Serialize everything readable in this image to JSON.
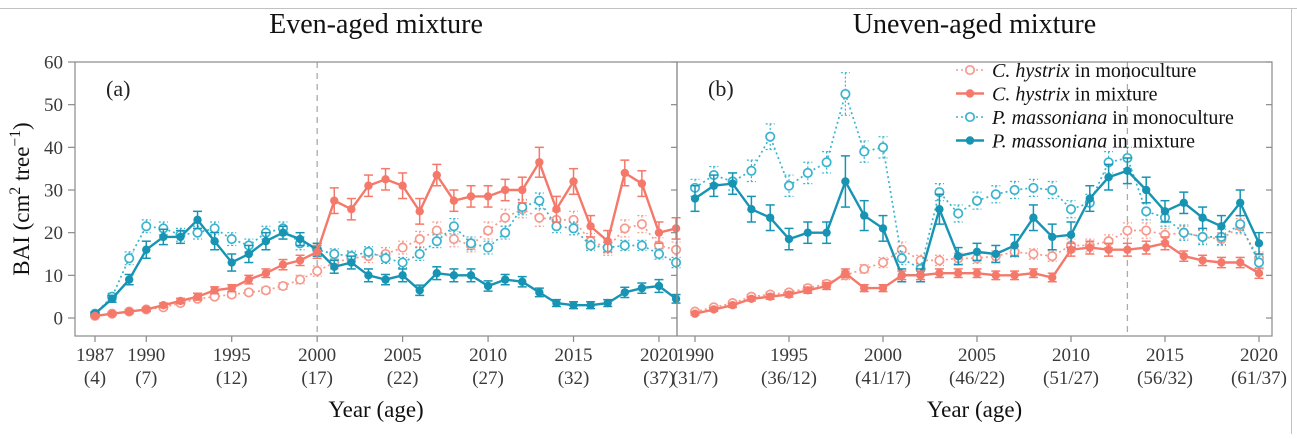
{
  "figure": {
    "panel_a": {
      "label": "(a)",
      "title": "Even-aged mixture",
      "xaxis_title": "Year (age)"
    },
    "panel_b": {
      "label": "(b)",
      "title": "Uneven-aged mixture",
      "xaxis_title": "Year (age)"
    },
    "y_axis": {
      "label_prefix": "BAI (cm",
      "label_sup1": "2",
      "label_mid": " tree",
      "label_sup2": "−1",
      "label_suffix": ")",
      "ticks": [
        0,
        10,
        20,
        30,
        40,
        50,
        60
      ]
    },
    "legend": [
      {
        "species": "C. hystrix",
        "rest": " in monoculture",
        "color_key": "salmon_open",
        "style": "open-dotted"
      },
      {
        "species": "C. hystrix",
        "rest": " in mixture",
        "color_key": "salmon_solid",
        "style": "filled-solid"
      },
      {
        "species": "P. massoniana",
        "rest": " in monoculture",
        "color_key": "teal_open",
        "style": "open-dotted"
      },
      {
        "species": "P. massoniana",
        "rest": " in mixture",
        "color_key": "teal_solid",
        "style": "filled-solid"
      }
    ],
    "colors": {
      "salmon_open": "#f79a8d",
      "salmon_solid": "#f5796a",
      "teal_open": "#3ab4ce",
      "teal_solid": "#1794b3",
      "dashed_line": "#ababab",
      "axis": "#8a8a8a",
      "tick_text": "#3a3a3a"
    }
  },
  "chart_data": [
    {
      "type": "line",
      "panel": "a",
      "title": "Even-aged mixture",
      "xlabel": "Year (age)",
      "ylabel": "BAI (cm2 tree-1)",
      "ylim": [
        -4,
        60
      ],
      "xlim": [
        1986,
        2021
      ],
      "dashed_line_year": 2000,
      "x_ticks": [
        {
          "year": 1987,
          "age": "(4)"
        },
        {
          "year": 1990,
          "age": "(7)"
        },
        {
          "year": 1995,
          "age": "(12)"
        },
        {
          "year": 2000,
          "age": "(17)"
        },
        {
          "year": 2005,
          "age": "(22)"
        },
        {
          "year": 2010,
          "age": "(27)"
        },
        {
          "year": 2015,
          "age": "(32)"
        },
        {
          "year": 2020,
          "age": "(37)"
        }
      ],
      "years": [
        1987,
        1988,
        1989,
        1990,
        1991,
        1992,
        1993,
        1994,
        1995,
        1996,
        1997,
        1998,
        1999,
        2000,
        2001,
        2002,
        2003,
        2004,
        2005,
        2006,
        2007,
        2008,
        2009,
        2010,
        2011,
        2012,
        2013,
        2014,
        2015,
        2016,
        2017,
        2018,
        2019,
        2020,
        2021
      ],
      "series": [
        {
          "name": "C. hystrix in monoculture",
          "key": "ch_mono",
          "style": "open-dotted",
          "color_key": "salmon_open",
          "values": [
            0.5,
            1,
            1.5,
            2,
            2.5,
            3.5,
            4.5,
            5,
            5.5,
            6,
            6.5,
            7.5,
            9,
            11,
            13,
            14,
            14.5,
            15,
            16.5,
            18.5,
            20.5,
            18.5,
            17,
            20.5,
            23.5,
            25.5,
            23.5,
            23,
            23,
            18,
            16.5,
            21,
            22,
            17,
            16
          ],
          "errors": [
            0.4,
            0.4,
            0.4,
            0.4,
            0.5,
            0.5,
            0.5,
            0.5,
            0.6,
            0.6,
            0.7,
            0.8,
            1,
            1.2,
            1.5,
            1.5,
            1.5,
            1.5,
            1.5,
            1.8,
            2,
            1.8,
            1.5,
            2,
            2,
            2,
            2,
            2,
            2,
            1.8,
            1.8,
            2,
            2,
            1.8,
            1.8
          ]
        },
        {
          "name": "P. massoniana in monoculture",
          "key": "pm_mono",
          "style": "open-dotted",
          "color_key": "teal_open",
          "values": [
            1,
            5,
            14,
            21.5,
            21,
            19.5,
            20,
            21,
            18.5,
            17,
            20,
            21,
            17.5,
            16,
            15,
            14.5,
            15.5,
            14,
            13,
            15,
            18,
            21.5,
            17.5,
            16.5,
            20,
            26,
            27.5,
            21.5,
            21,
            17,
            16.5,
            17,
            17,
            15,
            13
          ],
          "errors": [
            0.5,
            0.8,
            1.5,
            1.5,
            1.5,
            1.5,
            1.5,
            1.5,
            1.5,
            1.5,
            1.5,
            1.5,
            1.5,
            1.5,
            1.2,
            1.2,
            1.2,
            1.2,
            1.2,
            1.5,
            1.5,
            1.8,
            1.5,
            1.5,
            1.5,
            1.8,
            1.8,
            1.5,
            1.5,
            1.2,
            1.2,
            1.2,
            1.2,
            1.2,
            1.2
          ]
        },
        {
          "name": "P. massoniana in mixture",
          "key": "pm_mix",
          "style": "filled-solid",
          "color_key": "teal_solid",
          "values": [
            1,
            4.5,
            9,
            16,
            19,
            19,
            23,
            18,
            13,
            15,
            18,
            20,
            18.5,
            16,
            12,
            13,
            10,
            9,
            10,
            6.5,
            10.5,
            10,
            10,
            7.5,
            9,
            8.5,
            6,
            3.5,
            3,
            3,
            3.5,
            6,
            7,
            7.5,
            4.5
          ],
          "errors": [
            0.4,
            0.8,
            1.2,
            2,
            1.8,
            1.5,
            2,
            2,
            2,
            2,
            2,
            1.5,
            1.5,
            1.5,
            1.5,
            1.5,
            1.5,
            1.2,
            1.5,
            1.2,
            1.5,
            1.5,
            1.5,
            1.2,
            1.2,
            1.2,
            1,
            0.8,
            0.8,
            0.8,
            0.8,
            1.2,
            1.2,
            1.5,
            1
          ]
        },
        {
          "name": "C. hystrix in mixture",
          "key": "ch_mix",
          "style": "filled-solid",
          "color_key": "salmon_solid",
          "values": [
            0.5,
            1,
            1.5,
            2,
            3,
            4,
            5,
            6.5,
            7,
            9,
            10.5,
            12.5,
            13.5,
            15.5,
            27.5,
            25.5,
            31,
            32.5,
            31,
            25,
            33.5,
            27.5,
            28.5,
            28.5,
            30,
            30,
            36.5,
            25.5,
            32,
            21.5,
            18,
            34,
            31.5,
            20,
            21
          ],
          "errors": [
            0.3,
            0.3,
            0.4,
            0.4,
            0.5,
            0.6,
            0.8,
            0.8,
            0.8,
            1,
            1,
            1.2,
            1.2,
            1.5,
            3,
            2.5,
            2.5,
            2.5,
            3,
            3,
            2.5,
            2.5,
            2.5,
            2.5,
            2.5,
            3,
            3.5,
            3,
            3,
            2.5,
            2.5,
            3,
            3,
            2.5,
            2.5
          ]
        }
      ]
    },
    {
      "type": "line",
      "panel": "b",
      "title": "Uneven-aged mixture",
      "xlabel": "Year (age)",
      "ylabel": "BAI (cm2 tree-1)",
      "ylim": [
        -4,
        60
      ],
      "xlim": [
        1989,
        2021
      ],
      "dashed_line_year": 2013,
      "x_ticks": [
        {
          "year": 1990,
          "age": "(31/7)"
        },
        {
          "year": 1995,
          "age": "(36/12)"
        },
        {
          "year": 2000,
          "age": "(41/17)"
        },
        {
          "year": 2005,
          "age": "(46/22)"
        },
        {
          "year": 2010,
          "age": "(51/27)"
        },
        {
          "year": 2015,
          "age": "(56/32)"
        },
        {
          "year": 2020,
          "age": "(61/37)"
        }
      ],
      "years": [
        1990,
        1991,
        1992,
        1993,
        1994,
        1995,
        1996,
        1997,
        1998,
        1999,
        2000,
        2001,
        2002,
        2003,
        2004,
        2005,
        2006,
        2007,
        2008,
        2009,
        2010,
        2011,
        2012,
        2013,
        2014,
        2015,
        2016,
        2017,
        2018,
        2019,
        2020
      ],
      "series": [
        {
          "name": "C. hystrix in monoculture",
          "key": "ch_mono",
          "style": "open-dotted",
          "color_key": "salmon_open",
          "values": [
            1.5,
            2.5,
            3.5,
            5,
            5.5,
            6,
            7,
            8,
            10,
            11.5,
            13,
            16,
            13.5,
            13.5,
            14,
            14,
            14.5,
            15.5,
            15,
            14.5,
            17,
            17,
            18,
            20.5,
            20.5,
            19.5,
            20,
            19,
            18.5,
            21.5,
            14
          ],
          "errors": [
            0.4,
            0.5,
            0.5,
            0.6,
            0.6,
            0.6,
            0.7,
            0.8,
            1,
            1,
            1.2,
            1.8,
            1.2,
            1.2,
            1.2,
            1.2,
            1.2,
            1.2,
            1.2,
            1.2,
            1.5,
            1.5,
            1.5,
            1.8,
            1.8,
            1.5,
            1.5,
            1.5,
            1.5,
            1.8,
            1.5
          ]
        },
        {
          "name": "P. massoniana in monoculture",
          "key": "pm_mono",
          "style": "open-dotted",
          "color_key": "teal_open",
          "values": [
            30.5,
            33.5,
            32,
            34.5,
            42.5,
            31,
            34,
            36.5,
            52.5,
            39,
            40,
            14,
            11.5,
            29.5,
            24.5,
            27.5,
            29,
            30,
            30.5,
            30,
            25.5,
            27,
            36.5,
            37.5,
            25,
            23.5,
            20,
            19,
            19,
            22,
            13
          ],
          "errors": [
            2,
            2,
            2,
            2.5,
            3,
            2.5,
            2.5,
            2.5,
            5,
            2.5,
            2.5,
            1.5,
            1.2,
            2,
            2,
            2,
            2,
            2,
            2,
            2,
            2,
            2,
            2.5,
            2.5,
            2,
            2,
            1.8,
            1.8,
            1.8,
            2,
            1.5
          ]
        },
        {
          "name": "P. massoniana in mixture",
          "key": "pm_mix",
          "style": "filled-solid",
          "color_key": "teal_solid",
          "values": [
            28,
            31,
            31.5,
            25.5,
            23.5,
            18.5,
            20,
            20,
            32,
            24,
            21,
            10,
            10,
            25.5,
            14.5,
            15.5,
            15,
            17,
            23.5,
            19,
            19.5,
            28,
            33,
            34.5,
            30,
            25,
            27,
            23.5,
            21.5,
            27,
            17.5
          ],
          "errors": [
            3,
            2.5,
            2.5,
            3,
            3,
            2.5,
            2.5,
            2.5,
            6,
            3.5,
            3,
            1.5,
            1.5,
            3.5,
            2,
            2,
            2,
            2.5,
            3,
            3,
            3,
            3,
            3,
            3,
            3,
            2.5,
            2.5,
            2.5,
            2.5,
            3,
            2.5
          ]
        },
        {
          "name": "C. hystrix in mixture",
          "key": "ch_mix",
          "style": "filled-solid",
          "color_key": "salmon_solid",
          "values": [
            1,
            2,
            3,
            4.5,
            5,
            5.5,
            6.5,
            7.5,
            10.5,
            7,
            7,
            10,
            10,
            10.5,
            10.5,
            10.5,
            10,
            10,
            10.5,
            9.5,
            16,
            16.5,
            16,
            16,
            16.5,
            17.5,
            14.5,
            13.5,
            13,
            13,
            10.5
          ],
          "errors": [
            0.3,
            0.4,
            0.5,
            0.5,
            0.6,
            0.6,
            0.7,
            0.8,
            1,
            0.8,
            0.8,
            1,
            1,
            1,
            1,
            1,
            1,
            1,
            1,
            1,
            1.5,
            1.5,
            1.5,
            1.5,
            1.5,
            1.5,
            1.2,
            1.2,
            1.2,
            1.2,
            1.2
          ]
        }
      ]
    }
  ]
}
